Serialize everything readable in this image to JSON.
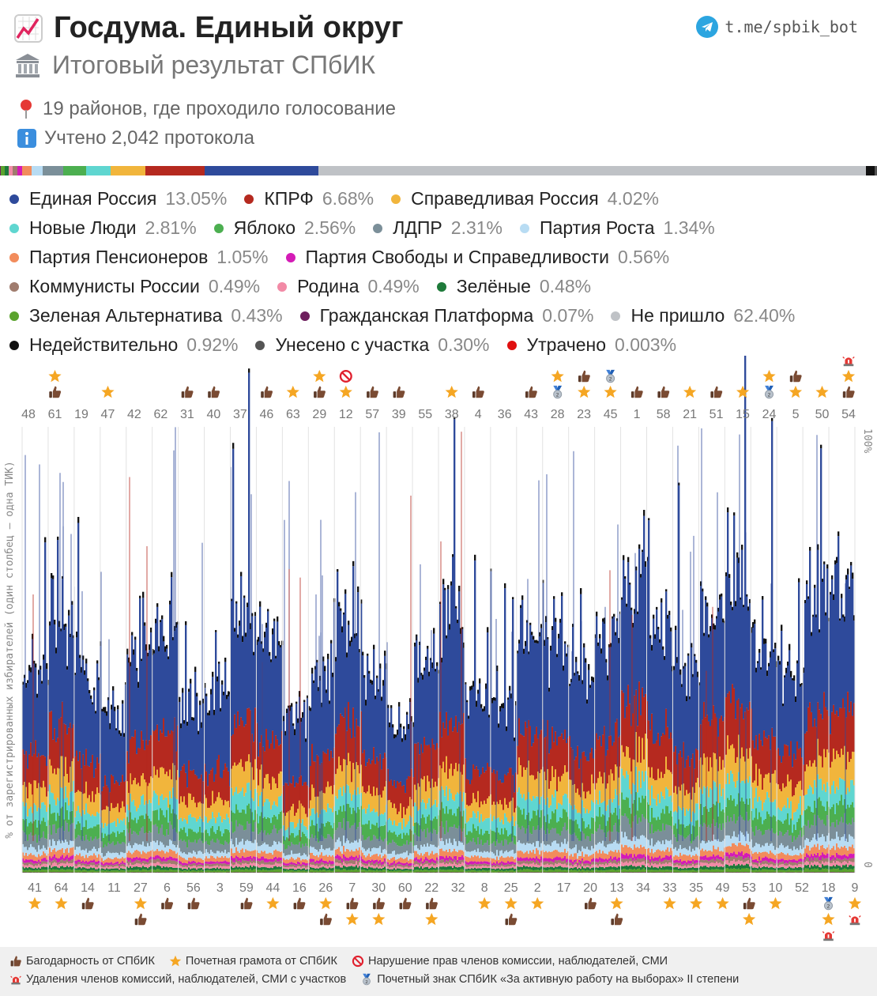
{
  "header": {
    "title": "Госдума. Единый округ",
    "subtitle": "Итоговый результат СПбИК",
    "telegram_link": "t.me/spbik_bot",
    "districts_text": "19 районов, где проходило голосование",
    "protocols_text": "Учтено 2,042 протокола",
    "icons": [
      "chart-increasing-icon",
      "classical-building-icon",
      "pushpin-icon",
      "information-icon",
      "telegram-icon"
    ]
  },
  "legend": [
    {
      "name": "Единая Россия",
      "value": "13.05%",
      "color": "#2e4a9b"
    },
    {
      "name": "КПРФ",
      "value": "6.68%",
      "color": "#b5291f"
    },
    {
      "name": "Справедливая Россия",
      "value": "4.02%",
      "color": "#f1b53c"
    },
    {
      "name": "Новые Люди",
      "value": "2.81%",
      "color": "#5fd6d0"
    },
    {
      "name": "Яблоко",
      "value": "2.56%",
      "color": "#4caf50"
    },
    {
      "name": "ЛДПР",
      "value": "2.31%",
      "color": "#7b8f99"
    },
    {
      "name": "Партия Роста",
      "value": "1.34%",
      "color": "#b8dcf3"
    },
    {
      "name": "Партия Пенсионеров",
      "value": "1.05%",
      "color": "#f28c5c"
    },
    {
      "name": "Партия Свободы и Справедливости",
      "value": "0.56%",
      "color": "#d41bb6"
    },
    {
      "name": "Коммунисты России",
      "value": "0.49%",
      "color": "#a07c6e"
    },
    {
      "name": "Родина",
      "value": "0.49%",
      "color": "#f28aa6"
    },
    {
      "name": "Зелёные",
      "value": "0.48%",
      "color": "#1e7a3a"
    },
    {
      "name": "Зеленая Альтернатива",
      "value": "0.43%",
      "color": "#5ba32e"
    },
    {
      "name": "Гражданская Платформа",
      "value": "0.07%",
      "color": "#6e1f5e"
    },
    {
      "name": "Не пришло",
      "value": "62.40%",
      "color": "#bfc2c6"
    },
    {
      "name": "Недействительно",
      "value": "0.92%",
      "color": "#111111"
    },
    {
      "name": "Унесено с участка",
      "value": "0.30%",
      "color": "#555555"
    },
    {
      "name": "Утрачено",
      "value": "0.003%",
      "color": "#e01010"
    }
  ],
  "legend_rows": [
    [
      0,
      1,
      2
    ],
    [
      3,
      4,
      5,
      6
    ],
    [
      7,
      8
    ],
    [
      9,
      10,
      11
    ],
    [
      12,
      13,
      14
    ],
    [
      15,
      16,
      17
    ]
  ],
  "chart_data": {
    "type": "bar",
    "stacked": true,
    "ylabel": "% от зарегистрированных избирателей (один столбец – одна ТИК)",
    "yticks": [
      "100%",
      "0"
    ],
    "ylim": [
      0,
      100
    ],
    "top_districts": [
      "48",
      "61",
      "19",
      "47",
      "42",
      "62",
      "31",
      "40",
      "37",
      "46",
      "63",
      "29",
      "12",
      "57",
      "39",
      "55",
      "38",
      "4",
      "36",
      "43",
      "28",
      "23",
      "45",
      "1",
      "58",
      "21",
      "51",
      "15",
      "24",
      "5",
      "50",
      "54"
    ],
    "bottom_districts": [
      "41",
      "64",
      "14",
      "11",
      "27",
      "6",
      "56",
      "3",
      "59",
      "44",
      "16",
      "26",
      "7",
      "30",
      "60",
      "22",
      "32",
      "8",
      "25",
      "2",
      "17",
      "20",
      "13",
      "34",
      "33",
      "35",
      "49",
      "53",
      "10",
      "52",
      "18",
      "9"
    ],
    "top_markers": [
      {
        "d": "61",
        "m": [
          "star",
          "thumb"
        ]
      },
      {
        "d": "47",
        "m": [
          "star"
        ]
      },
      {
        "d": "31",
        "m": [
          "thumb"
        ]
      },
      {
        "d": "40",
        "m": [
          "thumb"
        ]
      },
      {
        "d": "46",
        "m": [
          "thumb"
        ]
      },
      {
        "d": "63",
        "m": [
          "star"
        ]
      },
      {
        "d": "29",
        "m": [
          "star",
          "thumb"
        ]
      },
      {
        "d": "12",
        "m": [
          "ban",
          "star"
        ]
      },
      {
        "d": "57",
        "m": [
          "thumb"
        ]
      },
      {
        "d": "39",
        "m": [
          "thumb"
        ]
      },
      {
        "d": "38",
        "m": [
          "star"
        ]
      },
      {
        "d": "4",
        "m": [
          "thumb"
        ]
      },
      {
        "d": "43",
        "m": [
          "thumb"
        ]
      },
      {
        "d": "28",
        "m": [
          "star",
          "medal"
        ]
      },
      {
        "d": "23",
        "m": [
          "thumb",
          "star"
        ]
      },
      {
        "d": "45",
        "m": [
          "medal",
          "star"
        ]
      },
      {
        "d": "1",
        "m": [
          "thumb"
        ]
      },
      {
        "d": "58",
        "m": [
          "thumb"
        ]
      },
      {
        "d": "21",
        "m": [
          "star"
        ]
      },
      {
        "d": "51",
        "m": [
          "thumb"
        ]
      },
      {
        "d": "15",
        "m": [
          "star"
        ]
      },
      {
        "d": "24",
        "m": [
          "star",
          "medal"
        ]
      },
      {
        "d": "5",
        "m": [
          "thumb",
          "star"
        ]
      },
      {
        "d": "50",
        "m": [
          "star"
        ]
      },
      {
        "d": "54",
        "m": [
          "siren",
          "star",
          "thumb"
        ]
      }
    ],
    "bottom_markers": [
      {
        "d": "41",
        "m": [
          "star"
        ]
      },
      {
        "d": "64",
        "m": [
          "star"
        ]
      },
      {
        "d": "14",
        "m": [
          "thumb"
        ]
      },
      {
        "d": "27",
        "m": [
          "star",
          "thumb"
        ]
      },
      {
        "d": "6",
        "m": [
          "thumb"
        ]
      },
      {
        "d": "56",
        "m": [
          "thumb"
        ]
      },
      {
        "d": "59",
        "m": [
          "thumb"
        ]
      },
      {
        "d": "44",
        "m": [
          "star"
        ]
      },
      {
        "d": "16",
        "m": [
          "thumb"
        ]
      },
      {
        "d": "26",
        "m": [
          "star",
          "thumb"
        ]
      },
      {
        "d": "7",
        "m": [
          "thumb",
          "star"
        ]
      },
      {
        "d": "30",
        "m": [
          "thumb",
          "star"
        ]
      },
      {
        "d": "60",
        "m": [
          "thumb"
        ]
      },
      {
        "d": "22",
        "m": [
          "thumb",
          "star"
        ]
      },
      {
        "d": "8",
        "m": [
          "star"
        ]
      },
      {
        "d": "25",
        "m": [
          "star",
          "thumb"
        ]
      },
      {
        "d": "2",
        "m": [
          "star"
        ]
      },
      {
        "d": "20",
        "m": [
          "thumb"
        ]
      },
      {
        "d": "13",
        "m": [
          "star",
          "thumb"
        ]
      },
      {
        "d": "33",
        "m": [
          "star"
        ]
      },
      {
        "d": "35",
        "m": [
          "star"
        ]
      },
      {
        "d": "49",
        "m": [
          "star"
        ]
      },
      {
        "d": "53",
        "m": [
          "thumb",
          "star"
        ]
      },
      {
        "d": "10",
        "m": [
          "star"
        ]
      },
      {
        "d": "18",
        "m": [
          "medal",
          "star",
          "siren"
        ]
      },
      {
        "d": "9",
        "m": [
          "star",
          "siren"
        ]
      }
    ]
  },
  "footer": [
    [
      {
        "icon": "thumbs-up-icon",
        "text": "Багодарность от СПбИК"
      },
      {
        "icon": "star-icon",
        "text": "Почетная грамота от СПбИК"
      },
      {
        "icon": "prohibited-icon",
        "text": "Нарушение прав членов комиссии, наблюдателей, СМИ"
      }
    ],
    [
      {
        "icon": "siren-icon",
        "text": "Удаления членов комиссий, наблюдателей, СМИ с участков"
      },
      {
        "icon": "medal-icon",
        "text": "Почетный знак СПбИК «За активную работу на выборах» II степени"
      }
    ]
  ]
}
